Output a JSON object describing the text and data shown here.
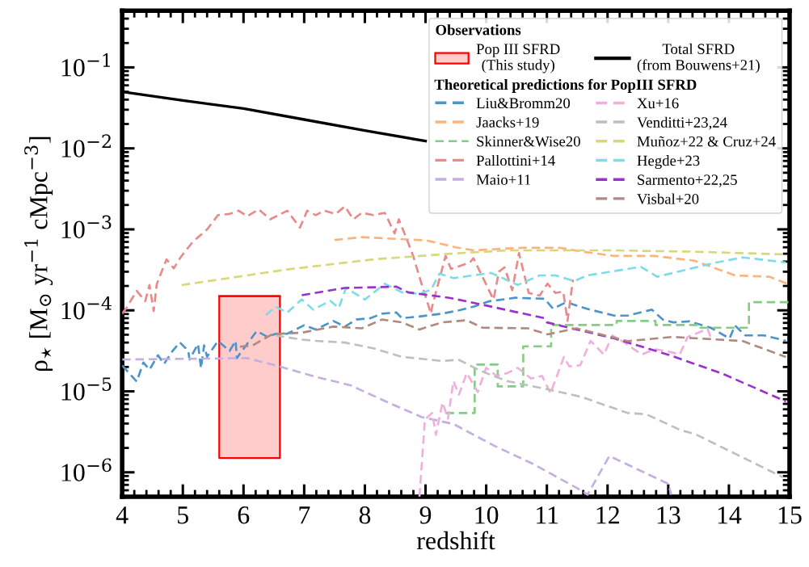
{
  "chart_data": {
    "type": "line",
    "xlabel": "redshift",
    "ylabel": "ρ$_{⋆}$ [M$_{⊙}$ yr$^{−1}$ cMpc$^{−3}$]",
    "legend_title": "Observations",
    "annotations": [
      "Theoretical predictions for PopIII SFRD"
    ],
    "log": "y",
    "legend": "top right",
    "grid": false,
    "xlim": [
      4,
      15
    ],
    "xticks": [
      4,
      5,
      6,
      7,
      8,
      9,
      10,
      11,
      12,
      13,
      14,
      15
    ],
    "ylim": [
      5e-07,
      0.5
    ],
    "yticks": [
      {
        "value": 0.1,
        "label": "10$^{−1}$"
      },
      {
        "value": 0.01,
        "label": "10$^{−2}$"
      },
      {
        "value": 0.001,
        "label": "10$^{−3}$"
      },
      {
        "value": 0.0001,
        "label": "10$^{−4}$"
      },
      {
        "value": 1e-05,
        "label": "10$^{−5}$"
      },
      {
        "value": 1e-06,
        "label": "10$^{−6}$"
      }
    ],
    "series": [
      {
        "name": "Pop III SFRD\n(This study)",
        "type": "line",
        "line_style": "solid",
        "color": "#ff0000",
        "x": [
          5.6,
          6.6
        ],
        "lower": [
          1.5e-06,
          1.5e-06
        ],
        "upper": [
          0.00015,
          0.00015
        ],
        "values": [
          0.00015,
          0.00015
        ]
      },
      {
        "name": "Total SFRD\n(from Bouwens+21)",
        "line_style": "solid",
        "color": "#000000",
        "x": [
          4,
          5,
          6,
          7,
          8,
          9
        ],
        "values": [
          0.05,
          0.039,
          0.031,
          0.0227,
          0.0166,
          0.0123
        ]
      },
      {
        "name": "Liu&Bromm20",
        "line_style": "dashed",
        "color": "#4d94c8",
        "x": [
          4.0,
          4.24,
          4.35,
          4.45,
          4.59,
          4.69,
          4.83,
          4.95,
          5.09,
          5.11,
          5.25,
          5.3,
          5.35,
          5.4,
          5.58,
          5.77,
          5.87,
          5.89,
          6.06,
          6.22,
          6.39,
          6.53,
          6.72,
          7.0,
          7.19,
          7.48,
          7.67,
          7.86,
          8.09,
          8.28,
          8.52,
          8.61,
          8.9,
          9.27,
          9.55,
          9.81,
          10.04,
          10.48,
          10.96,
          11.1,
          11.32,
          11.67,
          12.11,
          12.33,
          12.73,
          12.91,
          13.08,
          13.35,
          13.7,
          14.01,
          14.1,
          14.27,
          14.58,
          14.94
        ],
        "values": [
          2.09e-05,
          1.32e-05,
          2.27e-05,
          1.85e-05,
          2.79e-05,
          2.18e-05,
          3.15e-05,
          4.02e-05,
          3.15e-05,
          2.47e-05,
          3.85e-05,
          1.93e-05,
          3.7e-05,
          2.67e-05,
          4.19e-05,
          3.15e-05,
          4.19e-05,
          2.57e-05,
          3.85e-05,
          5.56e-05,
          4.73e-05,
          5.13e-05,
          5.13e-05,
          6.55e-05,
          5.8e-05,
          7.4e-05,
          6.3e-05,
          7.7e-05,
          8e-05,
          9.1e-05,
          9.4e-05,
          8e-05,
          8.4e-05,
          9.1e-05,
          0.0001,
          0.000112,
          0.000129,
          0.000143,
          0.000139,
          0.000105,
          0.000126,
          0.000104,
          8.6e-05,
          8.6e-05,
          0.000102,
          7.7e-05,
          7.1e-05,
          7.3e-05,
          6.1e-05,
          4.5e-05,
          6.5e-05,
          4.9e-05,
          4.9e-05,
          4.2e-05
        ]
      },
      {
        "name": "Jaacks+19",
        "line_style": "dashed",
        "color": "#ffb27a",
        "x": [
          7.5,
          7.95,
          8.71,
          9.02,
          9.5,
          9.8,
          10.34,
          10.57,
          11.23,
          11.58,
          12.11,
          12.77,
          13.43,
          14.1,
          14.67,
          14.98
        ],
        "values": [
          0.00074,
          0.0008,
          0.00075,
          0.00073,
          0.0006,
          0.00055,
          0.00058,
          0.00059,
          0.00059,
          0.00053,
          0.00047,
          0.00047,
          0.00041,
          0.00027,
          0.00026,
          0.00021
        ]
      },
      {
        "name": "Skinner&Wise20",
        "type": "step",
        "line_style": "dashed",
        "color": "#86cc86",
        "x": [
          9.33,
          9.81,
          10.19,
          10.61,
          11.07,
          12.15,
          12.79,
          13.5,
          14.33,
          15
        ],
        "values": [
          5.4e-06,
          2.14e-05,
          1.15e-05,
          3.6e-05,
          6.6e-05,
          7.4e-05,
          6.6e-05,
          6.1e-05,
          0.000126,
          0.000126
        ]
      },
      {
        "name": "Pallottini+14",
        "line_style": "dashed",
        "color": "#e88a89",
        "x": [
          4.0,
          4.07,
          4.24,
          4.38,
          4.45,
          4.52,
          4.57,
          4.73,
          4.85,
          4.97,
          5.16,
          5.21,
          5.4,
          5.58,
          5.77,
          5.92,
          6.06,
          6.25,
          6.44,
          6.58,
          6.72,
          6.93,
          7.05,
          7.19,
          7.33,
          7.52,
          7.67,
          7.81,
          7.95,
          8.14,
          8.33,
          8.49,
          8.56,
          8.71,
          8.8,
          8.94,
          9.09,
          9.11,
          9.33,
          9.42,
          9.55,
          9.73,
          9.79,
          10.12,
          10.21,
          10.3,
          10.43,
          10.54,
          10.7,
          10.88,
          11.01,
          11.14,
          11.27,
          11.34,
          11.43
        ],
        "values": [
          9.1e-05,
          0.000107,
          0.000174,
          0.00013,
          0.000205,
          9.8e-05,
          0.00021,
          0.000426,
          0.00033,
          0.00046,
          0.000695,
          0.00075,
          0.001,
          0.0015,
          0.00155,
          0.0017,
          0.00145,
          0.00177,
          0.00133,
          0.0015,
          0.0017,
          0.00105,
          0.0017,
          0.0015,
          0.0017,
          0.00155,
          0.00192,
          0.00133,
          0.0016,
          0.0015,
          0.0016,
          0.00089,
          0.00133,
          0.000695,
          0.00046,
          0.000205,
          9.1e-05,
          0.000112,
          0.00047,
          0.000325,
          0.00035,
          0.00039,
          0.00044,
          0.000136,
          0.0003,
          0.00034,
          0.000177,
          0.00051,
          0.000164,
          0.000152,
          0.000214,
          0.000164,
          0.00017,
          7.4e-05,
          0.00024
        ]
      },
      {
        "name": "Maio+11",
        "line_style": "dashed",
        "color": "#c4afe0",
        "x": [
          4.0,
          6.06,
          6.53,
          7.19,
          7.76,
          8.38,
          8.94,
          9.46,
          10.12,
          10.78,
          11.58,
          11.67,
          12.03,
          13.0,
          13.05
        ],
        "values": [
          2.47e-05,
          2.57e-05,
          2.09e-05,
          1.51e-05,
          1.19e-05,
          7.3e-06,
          4.8e-06,
          3.95e-06,
          2.15e-06,
          1.26e-06,
          5.9e-07,
          5.3e-07,
          1.59e-06,
          7.2e-07,
          5.3e-07
        ]
      },
      {
        "name": "Xu+16",
        "line_style": "dashed",
        "color": "#f0b0dd",
        "x": [
          8.9,
          8.99,
          9.11,
          9.17,
          9.28,
          9.37,
          9.46,
          9.55,
          9.68,
          9.86,
          10.0,
          10.17,
          10.35,
          10.52,
          10.74,
          10.92,
          11.06,
          11.28,
          11.37,
          11.55,
          11.72,
          11.94,
          12.08,
          12.3,
          12.56,
          12.79,
          13.01,
          13.19,
          13.32,
          13.65,
          13.72
        ],
        "values": [
          5e-07,
          4.5e-06,
          5.4e-06,
          2.9e-06,
          7.3e-06,
          4.6e-06,
          1.34e-05,
          9.1e-06,
          1.68e-05,
          9.8e-06,
          1.95e-05,
          1.55e-05,
          1.68e-05,
          1.95e-05,
          1.44e-05,
          1.55e-05,
          9.5e-06,
          2.65e-05,
          2.03e-05,
          2.1e-05,
          4.2e-05,
          2.85e-05,
          4.9e-05,
          3.9e-05,
          2.85e-05,
          3.3e-05,
          3.1e-05,
          2.85e-05,
          4.7e-05,
          5.9e-05,
          4.2e-05
        ]
      },
      {
        "name": "Venditti+23,24",
        "line_style": "dashed",
        "color": "#bfbfbf",
        "x": [
          6.53,
          6.96,
          7.19,
          7.67,
          8.14,
          8.61,
          9.27,
          9.55,
          9.9,
          10.34,
          11.01,
          11.58,
          12.33,
          12.64,
          13.21,
          13.43,
          14.1,
          14.89
        ],
        "values": [
          4.9e-05,
          4.35e-05,
          4.2e-05,
          4e-05,
          3.4e-05,
          2.67e-05,
          2.37e-05,
          2.45e-05,
          1.8e-05,
          1.34e-05,
          1.06e-05,
          8.5e-06,
          5.4e-06,
          5.2e-06,
          3.3e-06,
          3e-06,
          1.7e-06,
          8.7e-07
        ]
      },
      {
        "name": "Muñoz+22 & Cruz+24",
        "line_style": "dashed",
        "color": "#d8d87a",
        "x": [
          4.98,
          6.72,
          8.14,
          9.41,
          10.34,
          12.11,
          13.43,
          14.94
        ],
        "values": [
          0.000205,
          0.00032,
          0.000426,
          0.0005,
          0.00055,
          0.00055,
          0.00053,
          0.00049
        ]
      },
      {
        "name": "Hegde+23",
        "line_style": "dashed",
        "color": "#7ddce6",
        "x": [
          6.37,
          6.53,
          6.72,
          6.96,
          7.15,
          7.43,
          7.57,
          7.69,
          8.0,
          8.33,
          8.61,
          8.9,
          9.09,
          9.23,
          9.46,
          10.08,
          10.52,
          10.88,
          11.14,
          11.45,
          11.67,
          12.55,
          12.82,
          13.79,
          14.23,
          14.94
        ],
        "values": [
          8.7e-05,
          0.000111,
          9.4e-05,
          0.000136,
          0.000102,
          0.000131,
          0.000107,
          0.000189,
          0.000136,
          0.000213,
          0.000167,
          0.00016,
          0.00018,
          0.000284,
          0.00025,
          0.00029,
          0.000206,
          0.00027,
          0.00027,
          0.00023,
          0.00027,
          0.000345,
          0.00026,
          0.00039,
          0.00045,
          0.00039
        ]
      },
      {
        "name": "Sarmento+22,25",
        "line_style": "dashed",
        "color": "#9932cc",
        "x": [
          6.96,
          7.67,
          8.52,
          8.71,
          9.41,
          9.9,
          10.96,
          11.0,
          12.11,
          12.99,
          13.87,
          14.94
        ],
        "values": [
          0.000154,
          0.000189,
          0.000196,
          0.000167,
          0.000142,
          0.000119,
          8e-05,
          7.1e-05,
          4.5e-05,
          2.85e-05,
          1.68e-05,
          7.5e-06
        ]
      },
      {
        "name": "Visbal+20",
        "line_style": "dashed",
        "color": "#b08a80",
        "x": [
          5.94,
          6.15,
          6.48,
          6.96,
          7.48,
          7.95,
          8.28,
          8.61,
          8.9,
          9.27,
          9.68,
          9.94,
          10.69,
          11.01,
          11.49,
          12.33,
          13.08,
          14.23,
          14.94
        ],
        "values": [
          3.56e-05,
          3.7e-05,
          5.1e-05,
          5.3e-05,
          6.3e-05,
          6e-05,
          7.7e-05,
          7.1e-05,
          5.8e-05,
          7.1e-05,
          7.55e-05,
          6.1e-05,
          6e-05,
          5.05e-05,
          6e-05,
          4.17e-05,
          4.7e-05,
          4.17e-05,
          2.65e-05
        ]
      }
    ]
  }
}
